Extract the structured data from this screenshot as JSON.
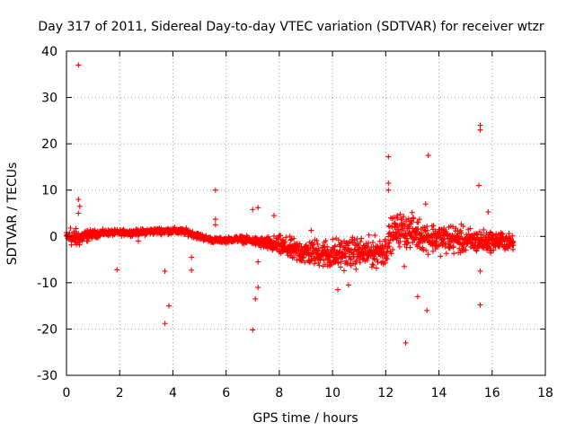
{
  "chart_data": {
    "type": "scatter",
    "title": "Day 317 of 2011, Sidereal Day-to-day VTEC variation (SDTVAR) for receiver wtzr",
    "xlabel": "GPS time / hours",
    "ylabel": "SDTVAR / TECUs",
    "xlim": [
      0,
      18
    ],
    "ylim": [
      -30,
      40
    ],
    "xticks": [
      0,
      2,
      4,
      6,
      8,
      10,
      12,
      14,
      16,
      18
    ],
    "yticks": [
      -30,
      -20,
      -10,
      0,
      10,
      20,
      30,
      40
    ],
    "grid": true,
    "color": "#ff0000",
    "marker": "+",
    "band": {
      "description": "dense cloud of points, central value and spread",
      "x": [
        0.0,
        0.3,
        0.5,
        1.0,
        1.5,
        2.0,
        2.5,
        3.0,
        3.5,
        4.0,
        4.5,
        5.0,
        5.5,
        6.0,
        6.5,
        7.0,
        7.5,
        8.0,
        8.5,
        9.0,
        9.5,
        10.0,
        10.5,
        11.0,
        11.5,
        12.0,
        12.2,
        12.5,
        13.0,
        13.5,
        14.0,
        14.5,
        15.0,
        15.5,
        16.0,
        16.5,
        16.8
      ],
      "center": [
        0.0,
        -0.5,
        -0.3,
        0.5,
        0.8,
        0.8,
        0.8,
        1.0,
        1.2,
        1.2,
        1.0,
        0.0,
        -0.8,
        -0.8,
        -0.5,
        -1.0,
        -1.5,
        -2.0,
        -3.0,
        -3.5,
        -3.5,
        -4.0,
        -3.5,
        -3.5,
        -3.5,
        -3.0,
        0.5,
        1.5,
        1.0,
        0.0,
        -0.5,
        -0.5,
        -1.0,
        -1.0,
        -1.0,
        -1.0,
        -1.5
      ],
      "spread": [
        1.5,
        3.0,
        2.5,
        1.2,
        0.9,
        0.9,
        0.9,
        1.0,
        1.0,
        1.0,
        1.0,
        1.0,
        0.8,
        0.8,
        1.0,
        1.2,
        2.0,
        3.0,
        3.5,
        3.8,
        4.2,
        5.0,
        4.5,
        4.5,
        4.5,
        4.5,
        5.0,
        5.0,
        5.0,
        4.5,
        4.5,
        4.5,
        4.0,
        3.5,
        3.0,
        2.8,
        2.0
      ]
    },
    "outliers": [
      {
        "x": 0.45,
        "y": 37
      },
      {
        "x": 0.45,
        "y": 8
      },
      {
        "x": 0.5,
        "y": 6.5
      },
      {
        "x": 0.45,
        "y": 5
      },
      {
        "x": 0.15,
        "y": 1.8
      },
      {
        "x": 1.9,
        "y": -7.2
      },
      {
        "x": 2.7,
        "y": -1
      },
      {
        "x": 3.7,
        "y": -7.5
      },
      {
        "x": 3.7,
        "y": -18.8
      },
      {
        "x": 3.85,
        "y": -15
      },
      {
        "x": 4.7,
        "y": -4.5
      },
      {
        "x": 4.7,
        "y": -7.3
      },
      {
        "x": 5.6,
        "y": 10
      },
      {
        "x": 5.6,
        "y": 3.7
      },
      {
        "x": 5.6,
        "y": 2.5
      },
      {
        "x": 7.0,
        "y": 5.8
      },
      {
        "x": 7.2,
        "y": 6.2
      },
      {
        "x": 7.0,
        "y": -20.2
      },
      {
        "x": 7.1,
        "y": -13.5
      },
      {
        "x": 7.2,
        "y": -11
      },
      {
        "x": 7.2,
        "y": -5.5
      },
      {
        "x": 7.8,
        "y": 4.5
      },
      {
        "x": 9.2,
        "y": 1.3
      },
      {
        "x": 10.2,
        "y": -11.5
      },
      {
        "x": 10.6,
        "y": -10.5
      },
      {
        "x": 12.1,
        "y": 17.2
      },
      {
        "x": 12.1,
        "y": 11.5
      },
      {
        "x": 12.1,
        "y": 10
      },
      {
        "x": 12.7,
        "y": -6.5
      },
      {
        "x": 12.75,
        "y": -23
      },
      {
        "x": 13.2,
        "y": -13
      },
      {
        "x": 13.5,
        "y": 7
      },
      {
        "x": 13.6,
        "y": 17.5
      },
      {
        "x": 13.55,
        "y": -16
      },
      {
        "x": 15.55,
        "y": 24
      },
      {
        "x": 15.55,
        "y": 23
      },
      {
        "x": 15.5,
        "y": 11
      },
      {
        "x": 15.55,
        "y": -7.5
      },
      {
        "x": 15.55,
        "y": -14.8
      },
      {
        "x": 15.85,
        "y": 5.3
      }
    ]
  }
}
